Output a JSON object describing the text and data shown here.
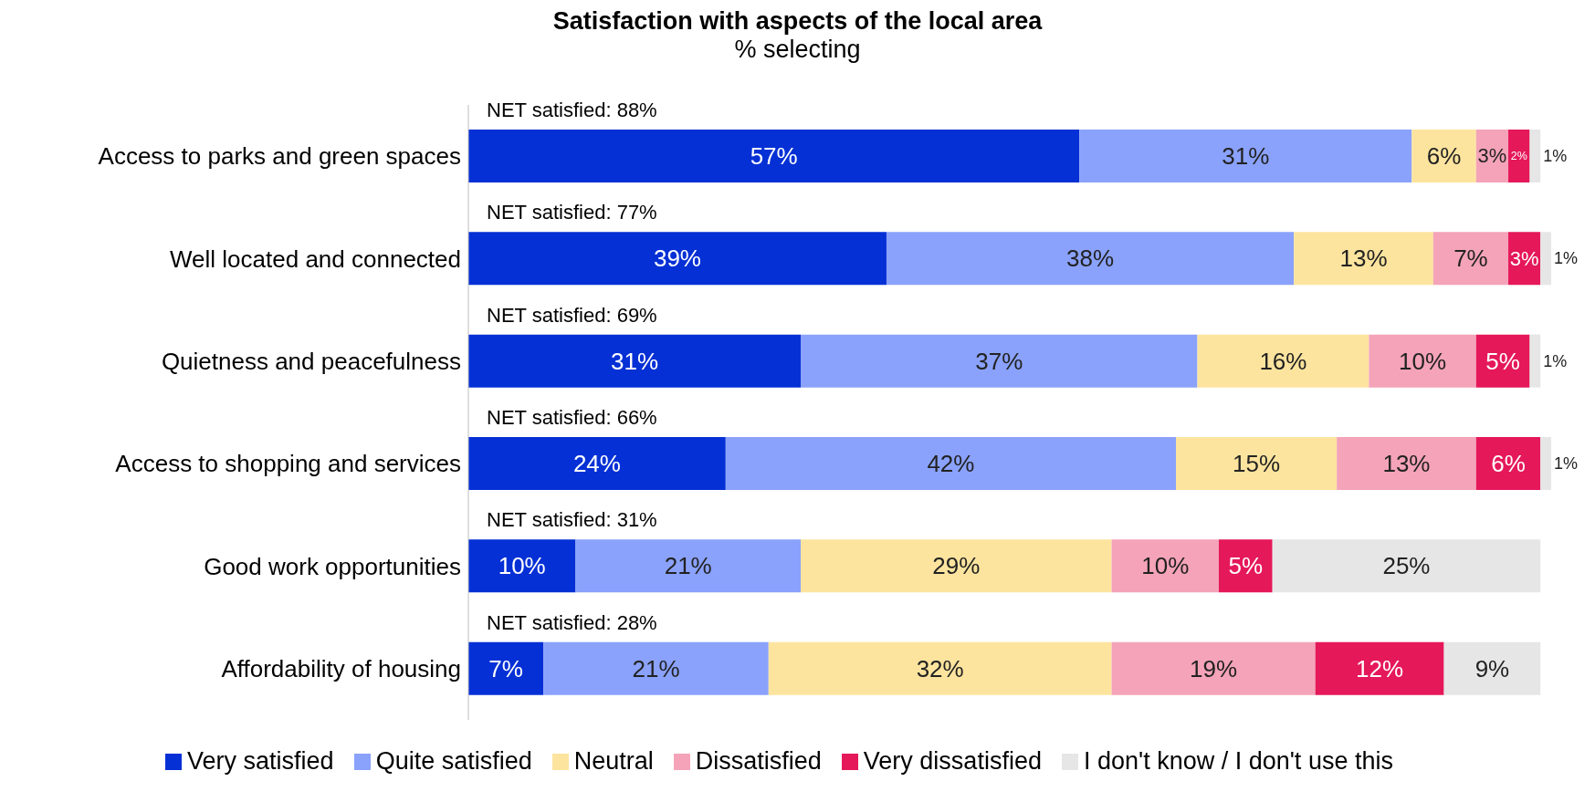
{
  "chart_data": {
    "type": "bar",
    "orientation": "horizontal",
    "stacked": true,
    "title": "Satisfaction with aspects of the local area",
    "subtitle": "% selecting",
    "categories": [
      "Access to parks and green spaces",
      "Well located and connected",
      "Quietness and peacefulness",
      "Access to shopping and services",
      "Good work opportunities",
      "Affordability of housing"
    ],
    "series": [
      {
        "name": "Very satisfied",
        "color": "#0530d5",
        "values": [
          57,
          39,
          31,
          24,
          10,
          7
        ],
        "value_labels": [
          "57%",
          "39%",
          "31%",
          "24%",
          "10%",
          "7%"
        ]
      },
      {
        "name": "Quite satisfied",
        "color": "#8aa2fb",
        "values": [
          31,
          38,
          37,
          42,
          21,
          21
        ],
        "value_labels": [
          "31%",
          "38%",
          "37%",
          "42%",
          "21%",
          "21%"
        ]
      },
      {
        "name": "Neutral",
        "color": "#fde49e",
        "values": [
          6,
          13,
          16,
          15,
          29,
          32
        ],
        "value_labels": [
          "6%",
          "13%",
          "16%",
          "15%",
          "29%",
          "32%"
        ]
      },
      {
        "name": "Dissatisfied",
        "color": "#f4a3b8",
        "values": [
          3,
          7,
          10,
          13,
          10,
          19
        ],
        "value_labels": [
          "3%",
          "7%",
          "10%",
          "13%",
          "10%",
          "19%"
        ]
      },
      {
        "name": "Very dissatisfied",
        "color": "#e5185a",
        "values": [
          2,
          3,
          5,
          6,
          5,
          12
        ],
        "value_labels": [
          "2%",
          "3%",
          "5%",
          "6%",
          "5%",
          "12%"
        ]
      },
      {
        "name": "I don't know / I don't use this",
        "color": "#e6e6e6",
        "values": [
          1,
          1,
          1,
          1,
          25,
          9
        ],
        "value_labels": [
          "1%",
          "1%",
          "1%",
          "1%",
          "25%",
          "9%"
        ]
      }
    ],
    "annotations": [
      "NET satisfied: 88%",
      "NET satisfied: 77%",
      "NET satisfied: 69%",
      "NET satisfied: 66%",
      "NET satisfied: 31%",
      "NET satisfied: 28%"
    ],
    "legend": "bottom",
    "grid": false,
    "tick_labels": "y"
  }
}
